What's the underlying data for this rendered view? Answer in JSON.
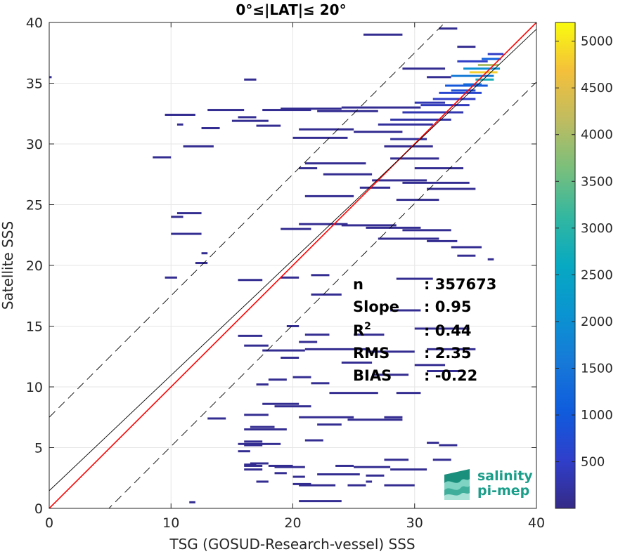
{
  "chart_data": {
    "type": "heatmap",
    "title": "0°≤|LAT|≤ 20°",
    "xlabel": "TSG (GOSUD-Research-vessel) SSS",
    "ylabel": "Satellite SSS",
    "xlim": [
      0,
      40
    ],
    "ylim": [
      0,
      40
    ],
    "x_ticks": [
      0,
      10,
      20,
      30,
      40
    ],
    "y_ticks": [
      0,
      5,
      10,
      15,
      20,
      25,
      30,
      35,
      40
    ],
    "grid": true,
    "colorbar": {
      "min": 1,
      "max": 5200,
      "ticks": [
        500,
        1000,
        1500,
        2000,
        2500,
        3000,
        3500,
        4000,
        4500,
        5000
      ],
      "colormap": "parula"
    },
    "reference_lines": [
      {
        "name": "1:1 line",
        "slope": 1.0,
        "intercept": 0.0,
        "color": "#ff0000",
        "style": "solid"
      },
      {
        "name": "regression",
        "slope": 0.95,
        "intercept": 1.45,
        "color": "#000000",
        "style": "solid"
      },
      {
        "name": "+3 RMS",
        "slope": 1.0,
        "intercept": 7.5,
        "color": "#000000",
        "style": "dashed"
      },
      {
        "name": "-3 RMS",
        "slope": 1.0,
        "intercept": -4.9,
        "color": "#000000",
        "style": "dashed"
      }
    ],
    "stats": [
      {
        "label": "n",
        "value": ": 357673"
      },
      {
        "label": "Slope",
        "value": ": 0.95"
      },
      {
        "label": "R",
        "sup": "2",
        "value": ": 0.44"
      },
      {
        "label": "RMS",
        "value": ": 2.35"
      },
      {
        "label": "BIAS",
        "value": ": -0.22"
      }
    ],
    "segments": [
      [
        25.8,
        29.0,
        39.0,
        1
      ],
      [
        32.0,
        33.5,
        39.5,
        1
      ],
      [
        33.5,
        35.0,
        38.0,
        1
      ],
      [
        29.0,
        32.5,
        36.2,
        1
      ],
      [
        31.0,
        33.0,
        35.5,
        1
      ],
      [
        33.5,
        36.0,
        36.8,
        6
      ],
      [
        34.0,
        37.0,
        36.2,
        25
      ],
      [
        33.0,
        36.5,
        35.6,
        20
      ],
      [
        34.5,
        36.8,
        35.9,
        60
      ],
      [
        35.0,
        36.5,
        35.3,
        35
      ],
      [
        32.5,
        36.0,
        34.8,
        12
      ],
      [
        32.0,
        35.5,
        34.2,
        8
      ],
      [
        31.5,
        35.0,
        33.7,
        6
      ],
      [
        30.5,
        34.5,
        33.2,
        5
      ],
      [
        29.0,
        34.0,
        32.6,
        4
      ],
      [
        28.0,
        33.0,
        32.0,
        3
      ],
      [
        34.0,
        35.5,
        34.9,
        16
      ],
      [
        35.2,
        36.9,
        36.5,
        50
      ],
      [
        35.5,
        37.1,
        37.0,
        14
      ],
      [
        36.0,
        37.3,
        37.4,
        6
      ],
      [
        33.0,
        35.0,
        34.4,
        10
      ],
      [
        30.0,
        32.5,
        33.4,
        4
      ],
      [
        24.0,
        30.5,
        33.0,
        1
      ],
      [
        22.0,
        27.0,
        32.7,
        1
      ],
      [
        19.0,
        24.0,
        32.9,
        1
      ],
      [
        17.5,
        21.5,
        32.8,
        1
      ],
      [
        13.0,
        16.0,
        32.8,
        1
      ],
      [
        9.5,
        12.0,
        32.4,
        1
      ],
      [
        15.5,
        17.0,
        32.2,
        1
      ],
      [
        15.0,
        18.0,
        31.9,
        1
      ],
      [
        17.0,
        19.0,
        31.5,
        1
      ],
      [
        20.5,
        25.0,
        31.2,
        1
      ],
      [
        27.0,
        31.5,
        31.6,
        2
      ],
      [
        25.0,
        29.0,
        31.0,
        1
      ],
      [
        20.0,
        24.5,
        30.5,
        1
      ],
      [
        28.0,
        31.0,
        30.4,
        2
      ],
      [
        12.5,
        14.0,
        31.3,
        1
      ],
      [
        10.5,
        11.0,
        31.6,
        1
      ],
      [
        27.5,
        31.5,
        29.8,
        1
      ],
      [
        11.0,
        13.5,
        29.8,
        1
      ],
      [
        8.5,
        10.0,
        28.9,
        1
      ],
      [
        21.0,
        26.0,
        28.4,
        1
      ],
      [
        28.0,
        32.0,
        28.8,
        1
      ],
      [
        30.0,
        34.0,
        28.0,
        1
      ],
      [
        20.5,
        22.0,
        28.0,
        1
      ],
      [
        22.5,
        26.5,
        27.5,
        1
      ],
      [
        26.5,
        31.0,
        27.0,
        1
      ],
      [
        29.0,
        34.5,
        26.8,
        1
      ],
      [
        31.0,
        35.0,
        26.3,
        1
      ],
      [
        25.5,
        28.0,
        26.4,
        1
      ],
      [
        21.0,
        25.0,
        25.7,
        1
      ],
      [
        28.5,
        32.0,
        25.4,
        1
      ],
      [
        10.5,
        12.5,
        24.3,
        1
      ],
      [
        10.0,
        11.0,
        24.0,
        1
      ],
      [
        20.5,
        24.5,
        23.4,
        1
      ],
      [
        24.0,
        28.5,
        23.3,
        1
      ],
      [
        19.0,
        21.5,
        23.0,
        1
      ],
      [
        26.0,
        30.5,
        23.1,
        1
      ],
      [
        29.0,
        33.0,
        22.9,
        1
      ],
      [
        27.0,
        32.0,
        22.2,
        1
      ],
      [
        10.0,
        12.5,
        22.6,
        1
      ],
      [
        31.0,
        33.5,
        22.0,
        1
      ],
      [
        33.0,
        35.5,
        21.5,
        1
      ],
      [
        33.5,
        35.0,
        20.8,
        1
      ],
      [
        36.0,
        36.5,
        20.5,
        1
      ],
      [
        12.5,
        13.0,
        21.0,
        1
      ],
      [
        12.0,
        13.0,
        20.2,
        1
      ],
      [
        19.0,
        20.5,
        19.0,
        1
      ],
      [
        9.5,
        10.5,
        19.0,
        1
      ],
      [
        15.5,
        17.5,
        18.8,
        1
      ],
      [
        21.5,
        23.0,
        19.2,
        1
      ],
      [
        28.5,
        31.5,
        18.9,
        1
      ],
      [
        21.5,
        24.0,
        17.6,
        1
      ],
      [
        28.0,
        30.5,
        16.3,
        1
      ],
      [
        19.5,
        20.5,
        15.0,
        1
      ],
      [
        21.0,
        23.0,
        14.3,
        1
      ],
      [
        25.0,
        27.5,
        14.3,
        1
      ],
      [
        30.0,
        34.5,
        14.8,
        1
      ],
      [
        15.5,
        17.5,
        14.2,
        1
      ],
      [
        20.5,
        22.0,
        13.7,
        1
      ],
      [
        31.0,
        35.0,
        13.1,
        1
      ],
      [
        16.0,
        18.0,
        13.4,
        1
      ],
      [
        17.5,
        21.0,
        13.0,
        1
      ],
      [
        21.0,
        26.0,
        13.1,
        1
      ],
      [
        26.0,
        30.0,
        12.9,
        1
      ],
      [
        19.0,
        20.5,
        12.4,
        1
      ],
      [
        24.0,
        26.5,
        12.0,
        1
      ],
      [
        30.0,
        32.5,
        11.8,
        1
      ],
      [
        31.0,
        34.0,
        11.3,
        1
      ],
      [
        26.5,
        29.5,
        11.0,
        1
      ],
      [
        18.0,
        19.5,
        10.6,
        1
      ],
      [
        20.0,
        21.5,
        10.8,
        1
      ],
      [
        21.5,
        23.0,
        10.3,
        1
      ],
      [
        17.0,
        18.0,
        10.2,
        1
      ],
      [
        23.0,
        27.0,
        9.5,
        1
      ],
      [
        28.5,
        30.5,
        9.5,
        1
      ],
      [
        17.5,
        20.5,
        8.6,
        1
      ],
      [
        18.5,
        21.5,
        8.4,
        1
      ],
      [
        16.0,
        18.0,
        7.7,
        1
      ],
      [
        20.5,
        25.0,
        7.5,
        1
      ],
      [
        24.5,
        29.0,
        7.3,
        1
      ],
      [
        22.0,
        24.0,
        6.9,
        1
      ],
      [
        27.5,
        29.0,
        7.5,
        1
      ],
      [
        16.0,
        19.5,
        6.5,
        1
      ],
      [
        13.0,
        14.5,
        7.4,
        1
      ],
      [
        16.5,
        18.5,
        6.7,
        1
      ],
      [
        21.0,
        22.5,
        5.6,
        1
      ],
      [
        16.0,
        17.5,
        5.5,
        1
      ],
      [
        31.0,
        32.0,
        5.4,
        1
      ],
      [
        15.5,
        19.0,
        5.3,
        1
      ],
      [
        16.0,
        17.5,
        5.2,
        1
      ],
      [
        32.0,
        33.5,
        5.2,
        1
      ],
      [
        15.5,
        16.5,
        4.7,
        1
      ],
      [
        23.5,
        25.0,
        3.5,
        1
      ],
      [
        16.5,
        18.0,
        3.7,
        1
      ],
      [
        16.0,
        17.0,
        3.6,
        1
      ],
      [
        31.5,
        33.0,
        4.0,
        1
      ],
      [
        27.5,
        29.5,
        4.0,
        1
      ],
      [
        16.0,
        17.5,
        3.5,
        1
      ],
      [
        18.0,
        20.0,
        3.5,
        1
      ],
      [
        18.5,
        21.0,
        3.4,
        1
      ],
      [
        25.0,
        28.0,
        3.4,
        1
      ],
      [
        28.0,
        31.0,
        3.2,
        1
      ],
      [
        16.0,
        17.5,
        3.2,
        1
      ],
      [
        18.5,
        19.5,
        2.9,
        1
      ],
      [
        22.0,
        25.5,
        2.8,
        1
      ],
      [
        26.0,
        27.5,
        2.7,
        1
      ],
      [
        20.0,
        21.0,
        2.6,
        1
      ],
      [
        17.0,
        18.0,
        2.2,
        1
      ],
      [
        20.0,
        21.5,
        2.0,
        1
      ],
      [
        20.5,
        23.5,
        1.9,
        1
      ],
      [
        24.5,
        26.0,
        1.9,
        1
      ],
      [
        27.5,
        30.0,
        1.9,
        1
      ],
      [
        26.0,
        26.5,
        2.2,
        1
      ],
      [
        20.5,
        24.0,
        0.6,
        1
      ],
      [
        11.5,
        12.0,
        0.5,
        1
      ],
      [
        0.0,
        0.2,
        35.5,
        1
      ],
      [
        16.0,
        17.0,
        35.3,
        1
      ]
    ]
  },
  "logo": {
    "line1": "salinity",
    "line2": "pi-mep"
  },
  "colors": {
    "axis": "#262626",
    "grid": "#e6e6e6",
    "one_to_one": "#ff0000",
    "regression": "#000000",
    "logo_teal": "#1a9e8a"
  }
}
